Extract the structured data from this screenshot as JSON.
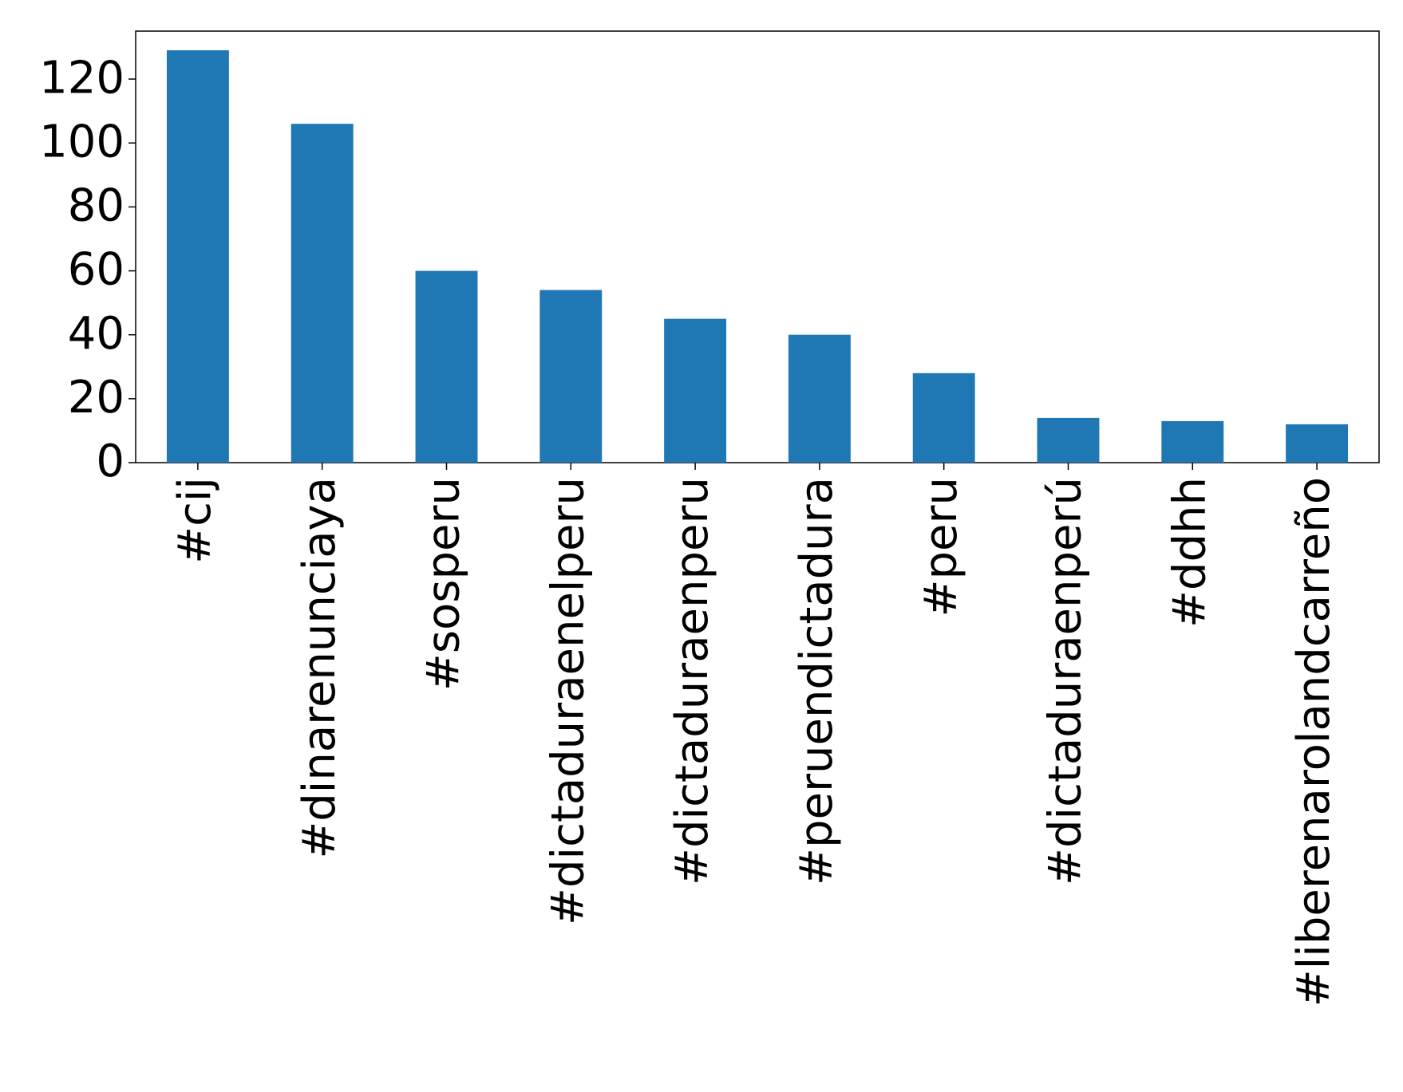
{
  "chart_data": {
    "type": "bar",
    "categories": [
      "#cij",
      "#dinarenunciaya",
      "#sosperu",
      "#dictaduraenelperu",
      "#dictaduraenperu",
      "#peruendictadura",
      "#peru",
      "#dictaduraenperú",
      "#ddhh",
      "#liberenarolandcarreño"
    ],
    "values": [
      129,
      106,
      60,
      54,
      45,
      40,
      28,
      14,
      13,
      12
    ],
    "color": "#1f77b4",
    "ylim": [
      0,
      135
    ],
    "yticks": [
      0,
      20,
      40,
      60,
      80,
      100,
      120
    ],
    "grid": false
  }
}
